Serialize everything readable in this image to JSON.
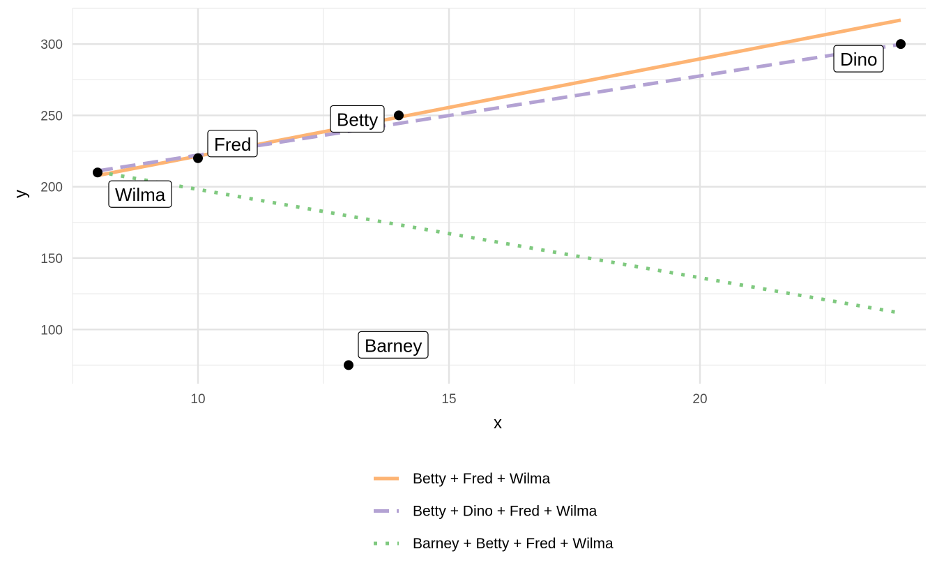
{
  "chart_data": {
    "type": "scatter",
    "xlabel": "x",
    "ylabel": "y",
    "xlim": [
      7.5,
      24.5
    ],
    "ylim": [
      62,
      325
    ],
    "x_major_ticks": [
      10,
      15,
      20
    ],
    "x_minor_ticks": [
      7.5,
      12.5,
      17.5,
      22.5
    ],
    "y_major_ticks": [
      100,
      150,
      200,
      250,
      300
    ],
    "y_minor_ticks": [
      75,
      125,
      175,
      225,
      275,
      325
    ],
    "grid": true,
    "legend_position": "bottom",
    "points": [
      {
        "label": "Wilma",
        "x": 8,
        "y": 210
      },
      {
        "label": "Fred",
        "x": 10,
        "y": 220
      },
      {
        "label": "Barney",
        "x": 13,
        "y": 75
      },
      {
        "label": "Betty",
        "x": 14,
        "y": 250
      },
      {
        "label": "Dino",
        "x": 24,
        "y": 300
      }
    ],
    "series": [
      {
        "name": "Betty + Fred + Wilma",
        "style": "solid",
        "color": "#fdb474",
        "x": [
          8,
          24
        ],
        "y": [
          207.9,
          316.8
        ]
      },
      {
        "name": "Betty + Dino + Fred + Wilma",
        "style": "dashed",
        "color": "#b3a2d3",
        "x": [
          8,
          24
        ],
        "y": [
          211.1,
          299.8
        ]
      },
      {
        "name": "Barney + Betty + Fred + Wilma",
        "style": "dotted",
        "color": "#7fc97f",
        "x": [
          8,
          24
        ],
        "y": [
          210.5,
          111.5
        ]
      }
    ]
  }
}
